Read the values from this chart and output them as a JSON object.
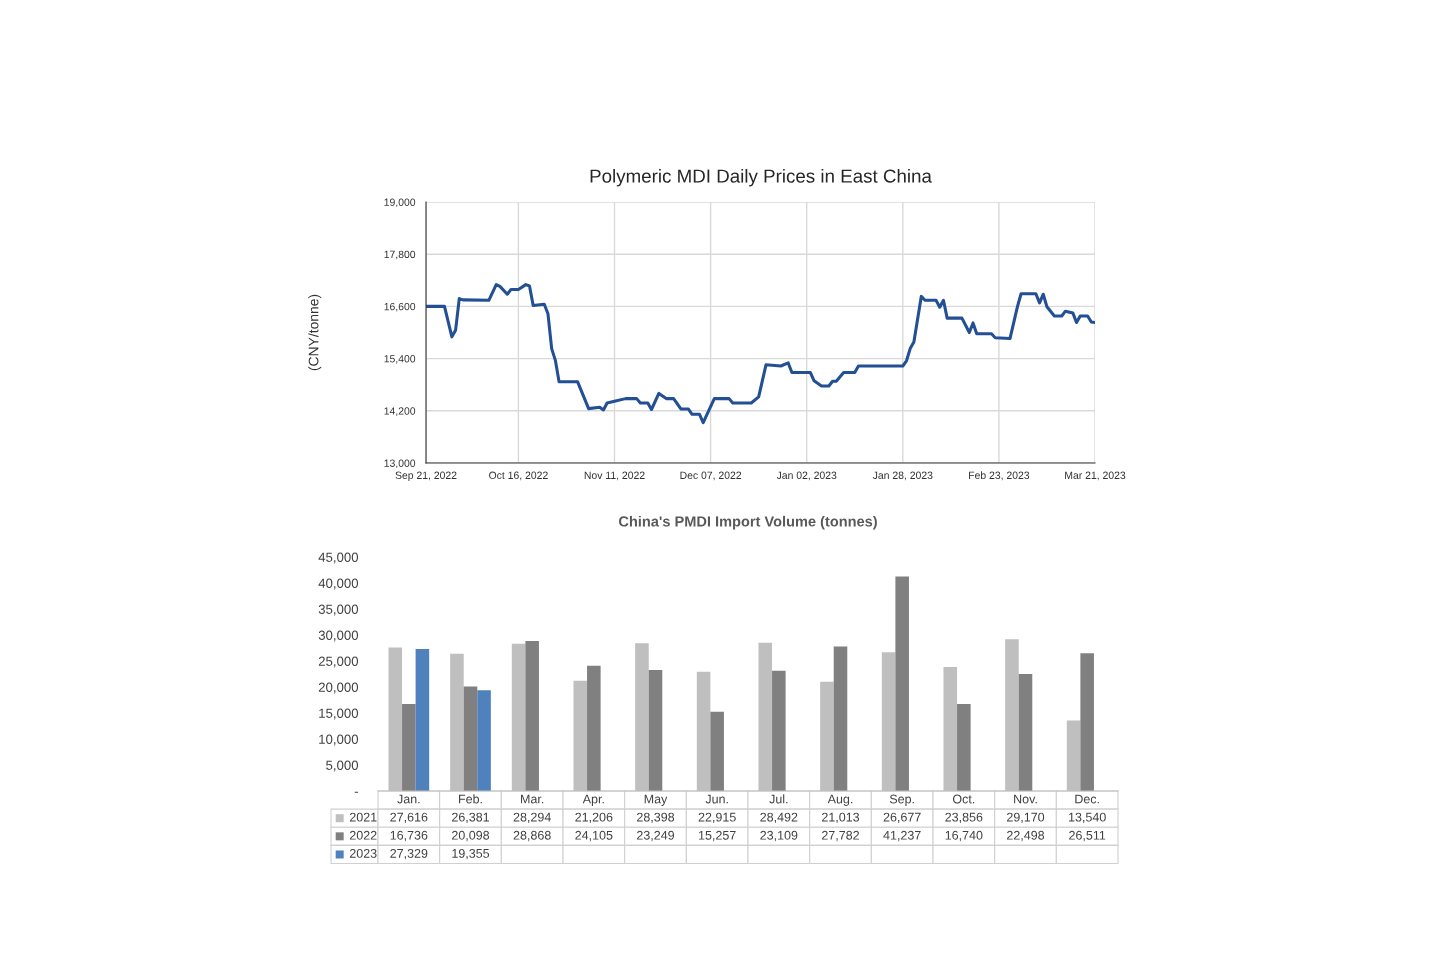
{
  "chart_data": [
    {
      "type": "line",
      "title": "Polymeric MDI Daily Prices in East China",
      "ylabel": "(CNY/tonne)",
      "grid": true,
      "line_style": "solid",
      "x": [
        "2022-09-21",
        "2022-09-26",
        "2022-09-28",
        "2022-09-29",
        "2022-09-30",
        "2022-10-01",
        "2022-10-08",
        "2022-10-10",
        "2022-10-11",
        "2022-10-13",
        "2022-10-14",
        "2022-10-16",
        "2022-10-18",
        "2022-10-19",
        "2022-10-20",
        "2022-10-23",
        "2022-10-24",
        "2022-10-25",
        "2022-10-26",
        "2022-10-27",
        "2022-11-01",
        "2022-11-04",
        "2022-11-07",
        "2022-11-08",
        "2022-11-09",
        "2022-11-11",
        "2022-11-14",
        "2022-11-17",
        "2022-11-18",
        "2022-11-20",
        "2022-11-21",
        "2022-11-23",
        "2022-11-25",
        "2022-11-27",
        "2022-11-29",
        "2022-12-01",
        "2022-12-02",
        "2022-12-04",
        "2022-12-05",
        "2022-12-08",
        "2022-12-12",
        "2022-12-13",
        "2022-12-18",
        "2022-12-20",
        "2022-12-22",
        "2022-12-26",
        "2022-12-28",
        "2022-12-29",
        "2023-01-03",
        "2023-01-04",
        "2023-01-06",
        "2023-01-08",
        "2023-01-09",
        "2023-01-10",
        "2023-01-12",
        "2023-01-15",
        "2023-01-16",
        "2023-01-28",
        "2023-01-29",
        "2023-01-30",
        "2023-01-31",
        "2023-02-02",
        "2023-02-03",
        "2023-02-06",
        "2023-02-07",
        "2023-02-08",
        "2023-02-09",
        "2023-02-13",
        "2023-02-15",
        "2023-02-16",
        "2023-02-17",
        "2023-02-21",
        "2023-02-22",
        "2023-02-26",
        "2023-02-28",
        "2023-03-01",
        "2023-03-05",
        "2023-03-06",
        "2023-03-07",
        "2023-03-08",
        "2023-03-10",
        "2023-03-12",
        "2023-03-13",
        "2023-03-15",
        "2023-03-16",
        "2023-03-17",
        "2023-03-19",
        "2023-03-20",
        "2023-03-21"
      ],
      "series": [
        {
          "color": "#234f94",
          "values": [
            16600,
            16600,
            15900,
            16050,
            16780,
            16750,
            16740,
            17100,
            17060,
            16880,
            16990,
            16990,
            17100,
            17070,
            16620,
            16650,
            16430,
            15630,
            15360,
            14870,
            14870,
            14250,
            14280,
            14220,
            14380,
            14420,
            14480,
            14480,
            14380,
            14380,
            14230,
            14600,
            14480,
            14480,
            14240,
            14240,
            14120,
            14120,
            13930,
            14480,
            14480,
            14380,
            14380,
            14520,
            15260,
            15230,
            15300,
            15080,
            15080,
            14890,
            14770,
            14770,
            14880,
            14880,
            15080,
            15080,
            15230,
            15230,
            15350,
            15630,
            15780,
            16830,
            16740,
            16740,
            16580,
            16740,
            16330,
            16330,
            16000,
            16220,
            15970,
            15970,
            15880,
            15860,
            16590,
            16890,
            16890,
            16680,
            16880,
            16590,
            16380,
            16380,
            16490,
            16450,
            16230,
            16380,
            16380,
            16240,
            16230
          ]
        }
      ],
      "xlim": [
        "2022-09-21",
        "2023-03-21"
      ],
      "xticks": [
        {
          "value": "2022-09-21",
          "label": "Sep 21, 2022"
        },
        {
          "value": "2022-10-16",
          "label": "Oct 16, 2022"
        },
        {
          "value": "2022-11-11",
          "label": "Nov 11, 2022"
        },
        {
          "value": "2022-12-07",
          "label": "Dec 07, 2022"
        },
        {
          "value": "2023-01-02",
          "label": "Jan 02, 2023"
        },
        {
          "value": "2023-01-28",
          "label": "Jan 28, 2023"
        },
        {
          "value": "2023-02-23",
          "label": "Feb 23, 2023"
        },
        {
          "value": "2023-03-21",
          "label": "Mar 21, 2023"
        }
      ],
      "ylim": [
        13000,
        19000
      ],
      "yticks": [
        {
          "value": 13000,
          "label": "13,000"
        },
        {
          "value": 14200,
          "label": "14,200"
        },
        {
          "value": 15400,
          "label": "15,400"
        },
        {
          "value": 16600,
          "label": "16,600"
        },
        {
          "value": 17800,
          "label": "17,800"
        },
        {
          "value": 19000,
          "label": "19,000"
        }
      ]
    },
    {
      "type": "bar",
      "title": "China's PMDI Import Volume (tonnes)",
      "legend": "bottom",
      "grid": false,
      "categories": [
        "Jan.",
        "Feb.",
        "Mar.",
        "Apr.",
        "May",
        "Jun.",
        "Jul.",
        "Aug.",
        "Sep.",
        "Oct.",
        "Nov.",
        "Dec."
      ],
      "series": [
        {
          "name": "2021",
          "color": "#bfbfbf",
          "values": [
            27616,
            26381,
            28294,
            21206,
            28398,
            22915,
            28492,
            21013,
            26677,
            23856,
            29170,
            13540
          ],
          "value_labels": [
            "27,616",
            "26,381",
            "28,294",
            "21,206",
            "28,398",
            "22,915",
            "28,492",
            "21,013",
            "26,677",
            "23,856",
            "29,170",
            "13,540"
          ]
        },
        {
          "name": "2022",
          "color": "#808080",
          "values": [
            16736,
            20098,
            28868,
            24105,
            23249,
            15257,
            23109,
            27782,
            41237,
            16740,
            22498,
            26511
          ],
          "value_labels": [
            "16,736",
            "20,098",
            "28,868",
            "24,105",
            "23,249",
            "15,257",
            "23,109",
            "27,782",
            "41,237",
            "16,740",
            "22,498",
            "26,511"
          ]
        },
        {
          "name": "2023",
          "color": "#4f81bd",
          "values": [
            27329,
            19355,
            null,
            null,
            null,
            null,
            null,
            null,
            null,
            null,
            null,
            null
          ],
          "value_labels": [
            "27,329",
            "19,355",
            null,
            null,
            null,
            null,
            null,
            null,
            null,
            null,
            null,
            null
          ]
        }
      ],
      "ylim": [
        0,
        45000
      ],
      "yticks": [
        {
          "value": 0,
          "label": "-"
        },
        {
          "value": 5000,
          "label": "5,000"
        },
        {
          "value": 10000,
          "label": "10,000"
        },
        {
          "value": 15000,
          "label": "15,000"
        },
        {
          "value": 20000,
          "label": "20,000"
        },
        {
          "value": 25000,
          "label": "25,000"
        },
        {
          "value": 30000,
          "label": "30,000"
        },
        {
          "value": 35000,
          "label": "35,000"
        },
        {
          "value": 40000,
          "label": "40,000"
        },
        {
          "value": 45000,
          "label": "45,000"
        }
      ]
    }
  ]
}
